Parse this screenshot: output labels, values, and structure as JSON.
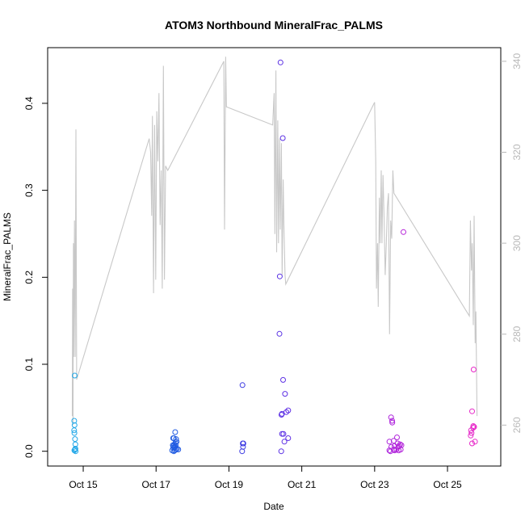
{
  "chart_data": {
    "type": "scatter",
    "title": "ATOM3 Northbound MineralFrac_PALMS",
    "xlabel": "Date",
    "ylabel": "MineralFrac_PALMS",
    "ylim": [
      -0.017,
      0.464
    ],
    "y_ticks": [
      0.0,
      0.1,
      0.2,
      0.3,
      0.4
    ],
    "y_tick_labels": [
      "0.0",
      "0.1",
      "0.2",
      "0.3",
      "0.4"
    ],
    "xlim": [
      "2017-10-14 00:34",
      "2017-10-26 11:06"
    ],
    "x_ticks": [
      "2017-10-15",
      "2017-10-17",
      "2017-10-19",
      "2017-10-21",
      "2017-10-23",
      "2017-10-25"
    ],
    "x_tick_labels": [
      "Oct 15",
      "Oct 17",
      "Oct 19",
      "Oct 21",
      "Oct 23",
      "Oct 25"
    ],
    "y2lim": [
      251,
      343
    ],
    "y2_ticks": [
      260,
      280,
      300,
      320,
      340
    ],
    "y2_tick_labels": [
      "260",
      "280",
      "300",
      "320",
      "340"
    ],
    "line_color": "#c8c8c8",
    "right_axis_color": "#b8b8b8",
    "point_color_ramp": [
      "#22a8e8",
      "#2244e0",
      "#8a22e8",
      "#e828c8"
    ],
    "series": [
      {
        "type": "scatter",
        "axis": "left",
        "marker": "open-circle",
        "points": [
          [
            "2017-10-14 18:05",
            0.035
          ],
          [
            "2017-10-14 18:17",
            0.03
          ],
          [
            "2017-10-14 18:00",
            0.024
          ],
          [
            "2017-10-14 18:12",
            0.021
          ],
          [
            "2017-10-14 18:24",
            0.087
          ],
          [
            "2017-10-14 18:36",
            0.014
          ],
          [
            "2017-10-14 18:48",
            0.008
          ],
          [
            "2017-10-14 18:29",
            0.002
          ],
          [
            "2017-10-14 18:10",
            0.001
          ],
          [
            "2017-10-14 18:53",
            0.003
          ],
          [
            "2017-10-14 18:58",
            0.0
          ],
          [
            "2017-10-17 11:16",
            0.015
          ],
          [
            "2017-10-17 11:42",
            0.015
          ],
          [
            "2017-10-17 12:34",
            0.022
          ],
          [
            "2017-10-17 13:12",
            0.014
          ],
          [
            "2017-10-17 11:03",
            0.007
          ],
          [
            "2017-10-17 12:08",
            0.008
          ],
          [
            "2017-10-17 12:48",
            0.01
          ],
          [
            "2017-10-17 13:32",
            0.011
          ],
          [
            "2017-10-17 11:16",
            0.004
          ],
          [
            "2017-10-17 12:08",
            0.004
          ],
          [
            "2017-10-17 12:34",
            0.005
          ],
          [
            "2017-10-17 13:45",
            0.003
          ],
          [
            "2017-10-17 10:37",
            0.001
          ],
          [
            "2017-10-17 11:42",
            0.0
          ],
          [
            "2017-10-17 12:21",
            0.001
          ],
          [
            "2017-10-17 13:12",
            0.002
          ],
          [
            "2017-10-17 11:29",
            0.006
          ],
          [
            "2017-10-17 12:56",
            0.007
          ],
          [
            "2017-10-17 14:37",
            0.002
          ],
          [
            "2017-10-19 08:55",
            0.076
          ],
          [
            "2017-10-19 09:07",
            0.009
          ],
          [
            "2017-10-19 09:30",
            0.009
          ],
          [
            "2017-10-19 09:19",
            0.005
          ],
          [
            "2017-10-19 08:44",
            0.0
          ],
          [
            "2017-10-20 09:58",
            0.447
          ],
          [
            "2017-10-20 11:27",
            0.36
          ],
          [
            "2017-10-20 09:30",
            0.201
          ],
          [
            "2017-10-20 09:18",
            0.135
          ],
          [
            "2017-10-20 11:40",
            0.082
          ],
          [
            "2017-10-20 12:57",
            0.066
          ],
          [
            "2017-10-20 15:03",
            0.047
          ],
          [
            "2017-10-20 13:48",
            0.045
          ],
          [
            "2017-10-20 10:56",
            0.043
          ],
          [
            "2017-10-20 10:36",
            0.042
          ],
          [
            "2017-10-20 11:01",
            0.02
          ],
          [
            "2017-10-20 11:53",
            0.02
          ],
          [
            "2017-10-20 15:03",
            0.015
          ],
          [
            "2017-10-20 12:33",
            0.011
          ],
          [
            "2017-10-20 10:28",
            0.0
          ],
          [
            "2017-10-23 10:51",
            0.039
          ],
          [
            "2017-10-23 11:31",
            0.035
          ],
          [
            "2017-10-23 11:37",
            0.033
          ],
          [
            "2017-10-23 14:42",
            0.016
          ],
          [
            "2017-10-23 09:43",
            0.011
          ],
          [
            "2017-10-23 12:31",
            0.012
          ],
          [
            "2017-10-23 15:09",
            0.009
          ],
          [
            "2017-10-23 16:48",
            0.008
          ],
          [
            "2017-10-23 13:06",
            0.006
          ],
          [
            "2017-10-23 16:18",
            0.006
          ],
          [
            "2017-10-23 17:38",
            0.007
          ],
          [
            "2017-10-23 15:38",
            0.005
          ],
          [
            "2017-10-23 11:01",
            0.005
          ],
          [
            "2017-10-23 09:43",
            0.001
          ],
          [
            "2017-10-23 10:24",
            0.0
          ],
          [
            "2017-10-23 13:11",
            0.001
          ],
          [
            "2017-10-23 14:20",
            0.002
          ],
          [
            "2017-10-23 15:51",
            0.001
          ],
          [
            "2017-10-23 17:09",
            0.002
          ],
          [
            "2017-10-23 12:31",
            0.002
          ],
          [
            "2017-10-23 18:58",
            0.252
          ],
          [
            "2017-10-25 16:12",
            0.046
          ],
          [
            "2017-10-25 17:13",
            0.094
          ],
          [
            "2017-10-25 17:00",
            0.029
          ],
          [
            "2017-10-25 17:33",
            0.028
          ],
          [
            "2017-10-25 16:55",
            0.027
          ],
          [
            "2017-10-25 15:31",
            0.024
          ],
          [
            "2017-10-25 15:51",
            0.021
          ],
          [
            "2017-10-25 15:19",
            0.018
          ],
          [
            "2017-10-25 16:14",
            0.009
          ],
          [
            "2017-10-25 18:08",
            0.011
          ]
        ]
      },
      {
        "type": "line",
        "axis": "right",
        "points": [
          [
            "2017-10-14 16:48",
            262
          ],
          [
            "2017-10-14 17:02",
            290
          ],
          [
            "2017-10-14 17:17",
            260
          ],
          [
            "2017-10-14 17:31",
            300
          ],
          [
            "2017-10-14 17:46",
            275
          ],
          [
            "2017-10-14 18:14",
            305
          ],
          [
            "2017-10-14 18:43",
            275
          ],
          [
            "2017-10-14 19:12",
            325
          ],
          [
            "2017-10-14 19:26",
            295
          ],
          [
            "2017-10-14 19:41",
            270
          ],
          [
            "2017-10-16 19:26",
            323
          ],
          [
            "2017-10-16 20:24",
            320
          ],
          [
            "2017-10-16 21:07",
            306
          ],
          [
            "2017-10-16 21:36",
            328
          ],
          [
            "2017-10-16 22:19",
            289
          ],
          [
            "2017-10-16 23:02",
            326
          ],
          [
            "2017-10-16 23:46",
            292
          ],
          [
            "2017-10-17 00:29",
            329
          ],
          [
            "2017-10-17 01:12",
            318
          ],
          [
            "2017-10-17 01:55",
            333
          ],
          [
            "2017-10-17 02:38",
            304
          ],
          [
            "2017-10-17 03:22",
            316
          ],
          [
            "2017-10-17 04:05",
            290
          ],
          [
            "2017-10-17 04:48",
            339
          ],
          [
            "2017-10-17 05:31",
            292
          ],
          [
            "2017-10-17 06:14",
            317
          ],
          [
            "2017-10-17 07:41",
            316
          ],
          [
            "2017-10-18 20:38",
            340
          ],
          [
            "2017-10-18 21:07",
            303
          ],
          [
            "2017-10-18 21:50",
            341
          ],
          [
            "2017-10-18 22:19",
            330
          ],
          [
            "2017-10-20 04:48",
            326
          ],
          [
            "2017-10-20 05:46",
            333
          ],
          [
            "2017-10-20 06:14",
            302
          ],
          [
            "2017-10-20 06:58",
            338
          ],
          [
            "2017-10-20 07:26",
            298
          ],
          [
            "2017-10-20 08:10",
            327
          ],
          [
            "2017-10-20 08:38",
            300
          ],
          [
            "2017-10-20 09:22",
            323
          ],
          [
            "2017-10-20 09:50",
            303
          ],
          [
            "2017-10-20 10:34",
            322
          ],
          [
            "2017-10-20 11:02",
            293
          ],
          [
            "2017-10-20 11:46",
            314
          ],
          [
            "2017-10-20 12:14",
            304
          ],
          [
            "2017-10-20 12:58",
            293
          ],
          [
            "2017-10-20 13:26",
            291
          ],
          [
            "2017-10-23 00:00",
            331
          ],
          [
            "2017-10-23 00:43",
            318
          ],
          [
            "2017-10-23 01:12",
            290
          ],
          [
            "2017-10-23 01:55",
            300
          ],
          [
            "2017-10-23 02:24",
            286
          ],
          [
            "2017-10-23 03:07",
            310
          ],
          [
            "2017-10-23 03:36",
            300
          ],
          [
            "2017-10-23 04:19",
            316
          ],
          [
            "2017-10-23 04:48",
            300
          ],
          [
            "2017-10-23 05:31",
            315
          ],
          [
            "2017-10-23 06:14",
            305
          ],
          [
            "2017-10-23 06:58",
            293
          ],
          [
            "2017-10-23 07:41",
            300
          ],
          [
            "2017-10-23 08:24",
            308
          ],
          [
            "2017-10-23 09:07",
            311
          ],
          [
            "2017-10-23 09:50",
            280
          ],
          [
            "2017-10-23 10:34",
            305
          ],
          [
            "2017-10-23 11:17",
            301
          ],
          [
            "2017-10-23 12:00",
            316
          ],
          [
            "2017-10-23 12:43",
            311
          ],
          [
            "2017-10-25 14:24",
            284
          ],
          [
            "2017-10-25 15:07",
            305
          ],
          [
            "2017-10-25 15:50",
            294
          ],
          [
            "2017-10-25 16:19",
            300
          ],
          [
            "2017-10-25 17:02",
            282
          ],
          [
            "2017-10-25 17:31",
            306
          ],
          [
            "2017-10-25 18:14",
            278
          ],
          [
            "2017-10-25 18:43",
            285
          ],
          [
            "2017-10-25 19:26",
            262
          ]
        ]
      }
    ]
  }
}
